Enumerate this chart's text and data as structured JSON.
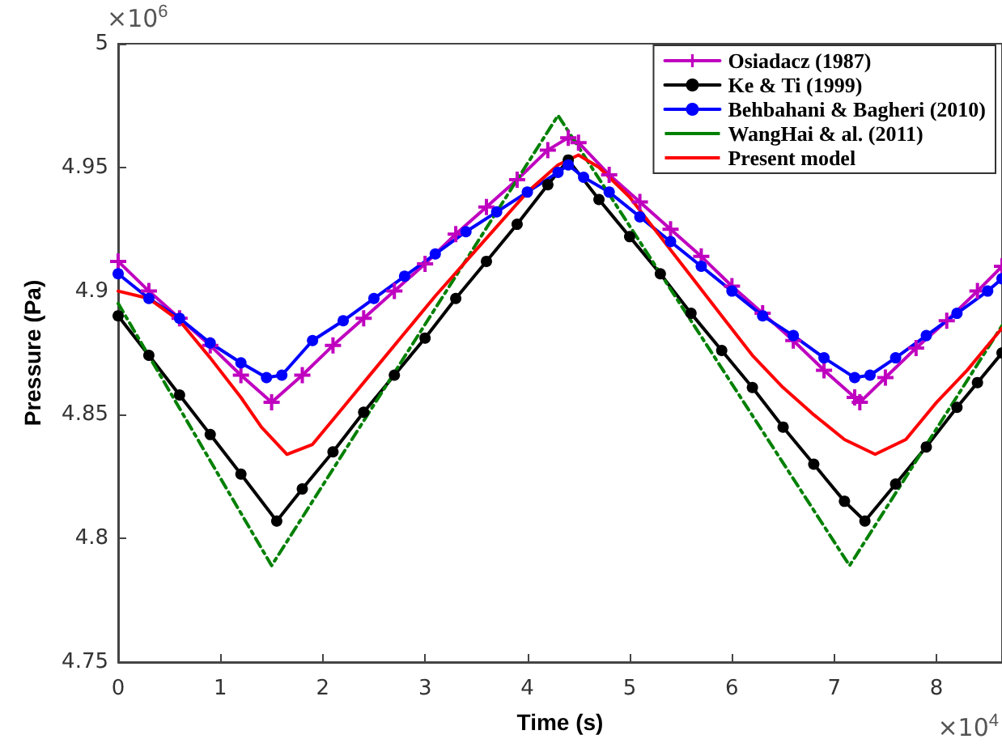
{
  "chart_data": {
    "type": "line",
    "xlabel": "Time (s)",
    "ylabel": "Pressure (Pa)",
    "annotations": [
      "×10$^{6}$",
      "×10$^{4}$"
    ],
    "xlim": [
      0,
      8.64
    ],
    "ylim": [
      4.75,
      5
    ],
    "xticks": [
      0,
      1,
      2,
      3,
      4,
      5,
      6,
      7,
      8
    ],
    "yticks": [
      4.75,
      4.8,
      4.85,
      4.9,
      4.95,
      5
    ],
    "grid": false,
    "legend": "top right",
    "series": [
      {
        "name": "Osiadacz (1987)",
        "color": "#bf00bf",
        "marker": "cross",
        "line_style": "solid",
        "x": [
          0,
          0.3,
          0.6,
          0.9,
          1.2,
          1.5,
          1.8,
          2.1,
          2.4,
          2.7,
          3,
          3.3,
          3.6,
          3.9,
          4.2,
          4.4,
          4.5,
          4.8,
          5.1,
          5.4,
          5.7,
          6,
          6.3,
          6.6,
          6.9,
          7.2,
          7.25,
          7.5,
          7.8,
          8.1,
          8.4,
          8.64
        ],
        "values": [
          4.912,
          4.9,
          4.889,
          4.878,
          4.866,
          4.855,
          4.866,
          4.878,
          4.889,
          4.9,
          4.911,
          4.923,
          4.934,
          4.945,
          4.957,
          4.962,
          4.96,
          4.947,
          4.936,
          4.925,
          4.914,
          4.902,
          4.891,
          4.88,
          4.868,
          4.857,
          4.855,
          4.865,
          4.877,
          4.888,
          4.9,
          4.91
        ]
      },
      {
        "name": "Ke & Ti (1999)",
        "color": "#000000",
        "marker": "circle",
        "line_style": "solid",
        "x": [
          0,
          0.3,
          0.6,
          0.9,
          1.2,
          1.55,
          1.8,
          2.1,
          2.4,
          2.7,
          3,
          3.3,
          3.6,
          3.9,
          4.2,
          4.4,
          4.7,
          5,
          5.3,
          5.6,
          5.9,
          6.2,
          6.5,
          6.8,
          7.1,
          7.3,
          7.6,
          7.9,
          8.2,
          8.4,
          8.64
        ],
        "values": [
          4.89,
          4.874,
          4.858,
          4.842,
          4.826,
          4.807,
          4.82,
          4.835,
          4.851,
          4.866,
          4.881,
          4.897,
          4.912,
          4.927,
          4.943,
          4.953,
          4.937,
          4.922,
          4.907,
          4.891,
          4.876,
          4.861,
          4.845,
          4.83,
          4.815,
          4.807,
          4.822,
          4.837,
          4.853,
          4.863,
          4.875
        ]
      },
      {
        "name": "Behbahani & Bagheri (2010)",
        "color": "#0000ff",
        "marker": "circle",
        "line_style": "solid",
        "x": [
          0,
          0.3,
          0.6,
          0.9,
          1.2,
          1.45,
          1.6,
          1.9,
          2.2,
          2.5,
          2.8,
          3.1,
          3.4,
          3.7,
          4,
          4.3,
          4.4,
          4.55,
          4.8,
          5.1,
          5.4,
          5.7,
          6,
          6.3,
          6.6,
          6.9,
          7.2,
          7.35,
          7.6,
          7.9,
          8.2,
          8.5,
          8.64
        ],
        "values": [
          4.907,
          4.897,
          4.889,
          4.879,
          4.871,
          4.865,
          4.866,
          4.88,
          4.888,
          4.897,
          4.906,
          4.915,
          4.924,
          4.932,
          4.94,
          4.948,
          4.951,
          4.946,
          4.94,
          4.93,
          4.92,
          4.91,
          4.9,
          4.89,
          4.882,
          4.873,
          4.865,
          4.866,
          4.873,
          4.882,
          4.891,
          4.9,
          4.905
        ]
      },
      {
        "name": "WangHai & al. (2011)",
        "color": "#008000",
        "marker": "none",
        "line_style": "dashed",
        "x": [
          0,
          1.5,
          4.3,
          7.15,
          8.64
        ],
        "values": [
          4.895,
          4.789,
          4.971,
          4.789,
          4.886
        ]
      },
      {
        "name": "Present model",
        "color": "#ff0000",
        "marker": "none",
        "line_style": "solid",
        "x": [
          0,
          0.3,
          0.6,
          0.9,
          1.2,
          1.4,
          1.65,
          1.9,
          2.2,
          2.5,
          2.8,
          3.1,
          3.4,
          3.7,
          4,
          4.3,
          4.5,
          4.7,
          5,
          5.3,
          5.6,
          5.9,
          6.2,
          6.5,
          6.8,
          7.1,
          7.4,
          7.7,
          8,
          8.3,
          8.64
        ],
        "values": [
          4.9,
          4.897,
          4.888,
          4.873,
          4.857,
          4.845,
          4.834,
          4.838,
          4.853,
          4.868,
          4.883,
          4.898,
          4.912,
          4.926,
          4.94,
          4.951,
          4.955,
          4.95,
          4.938,
          4.922,
          4.906,
          4.89,
          4.874,
          4.861,
          4.85,
          4.84,
          4.834,
          4.84,
          4.855,
          4.868,
          4.885
        ]
      }
    ]
  }
}
